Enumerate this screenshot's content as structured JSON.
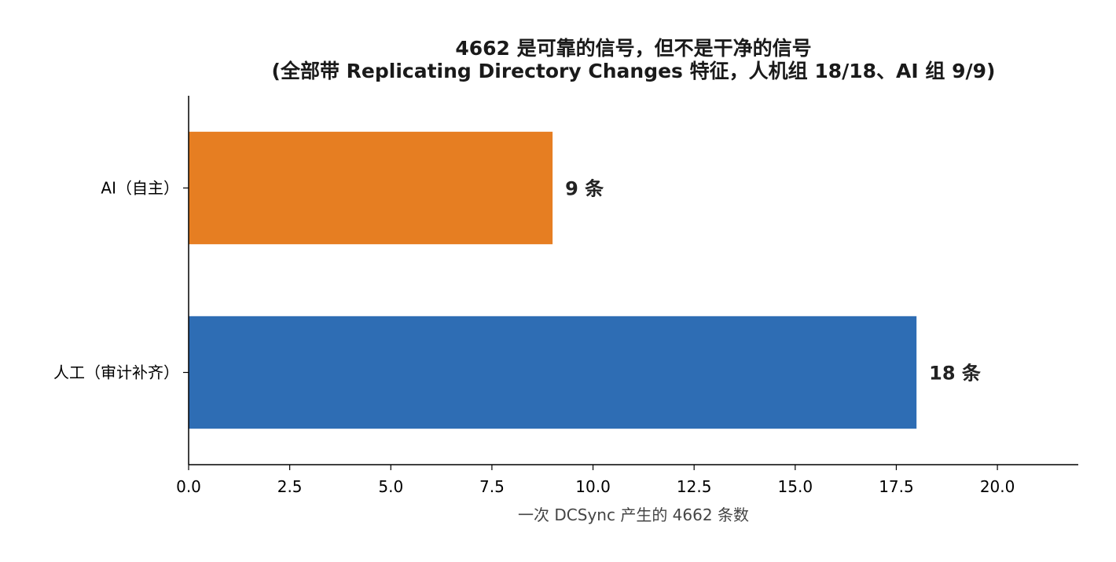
{
  "chart_data": {
    "type": "bar",
    "orientation": "horizontal",
    "title_lines": [
      "4662 是可靠的信号，但不是干净的信号",
      "(全部带 Replicating Directory Changes 特征，人机组 18/18、AI 组 9/9)"
    ],
    "categories": [
      "AI（自主）",
      "人工（审计补齐）"
    ],
    "values": [
      9,
      18
    ],
    "data_labels": [
      "9 条",
      "18 条"
    ],
    "colors": [
      "#e67e22",
      "#2e6db4"
    ],
    "xlabel": "一次 DCSync 产生的 4662 条数",
    "ylabel": "",
    "xlim": [
      0,
      22
    ],
    "xticks": [
      0,
      2.5,
      5,
      7.5,
      10,
      12.5,
      15,
      17.5,
      20
    ],
    "xtick_labels": [
      "0.0",
      "2.5",
      "5.0",
      "7.5",
      "10.0",
      "12.5",
      "15.0",
      "17.5",
      "20.0"
    ],
    "grid": false,
    "legend": "none"
  }
}
